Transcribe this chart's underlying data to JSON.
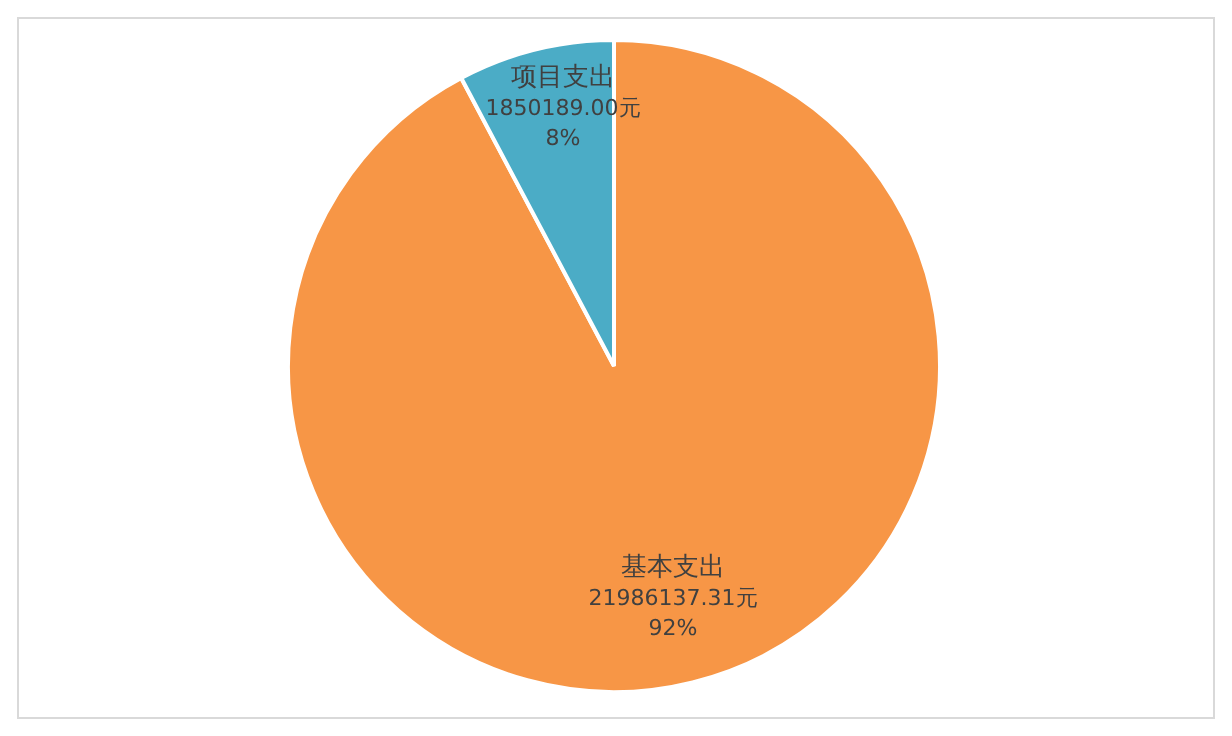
{
  "chart_data": {
    "type": "pie",
    "categories": [
      "基本支出",
      "项目支出"
    ],
    "values": [
      21986137.31,
      1850189.0
    ],
    "colors": [
      "#f79646",
      "#4bacc6"
    ],
    "value_labels": [
      "21986137.31元\n92%",
      "1850189.00元\n8%"
    ]
  }
}
